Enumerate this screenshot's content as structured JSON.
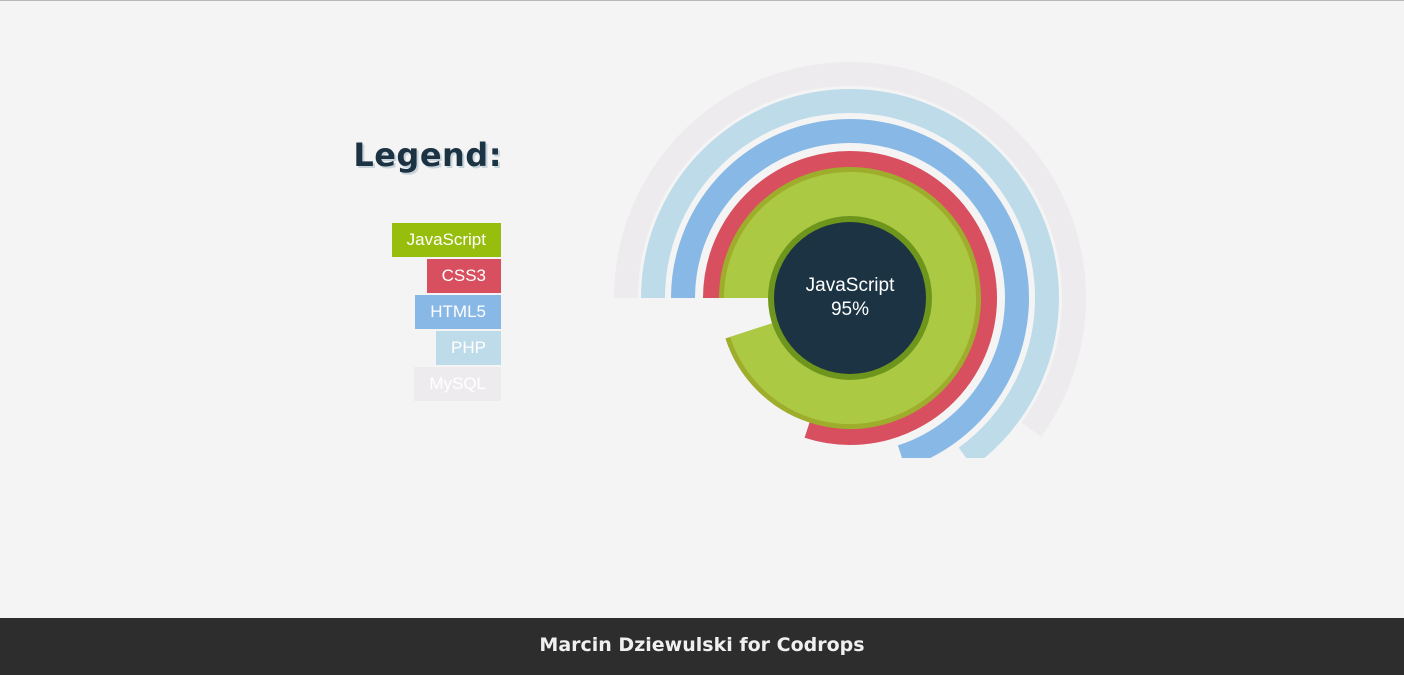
{
  "legend": {
    "title": "Legend:"
  },
  "chart_data": {
    "type": "radial_bar",
    "series": [
      {
        "name": "JavaScript",
        "value": 95,
        "color": "#97be0d"
      },
      {
        "name": "CSS3",
        "value": 80,
        "color": "#d84f5f"
      },
      {
        "name": "HTML5",
        "value": 70,
        "color": "#88b8e6"
      },
      {
        "name": "PHP",
        "value": 65,
        "color": "#bedbe9"
      },
      {
        "name": "MySQL",
        "value": 60,
        "color": "#edebee"
      }
    ],
    "active": {
      "name": "JavaScript",
      "value_label": "95%"
    }
  },
  "footer": {
    "credit": "Marcin Dziewulski for Codrops"
  },
  "colors": {
    "background": "#f4f4f4",
    "center": "#1c3344",
    "active_fill": "#acc944",
    "active_edge": "#9fad2c",
    "active_inner_ring": "#6e961d",
    "footer_bg": "#2d2d2d"
  }
}
